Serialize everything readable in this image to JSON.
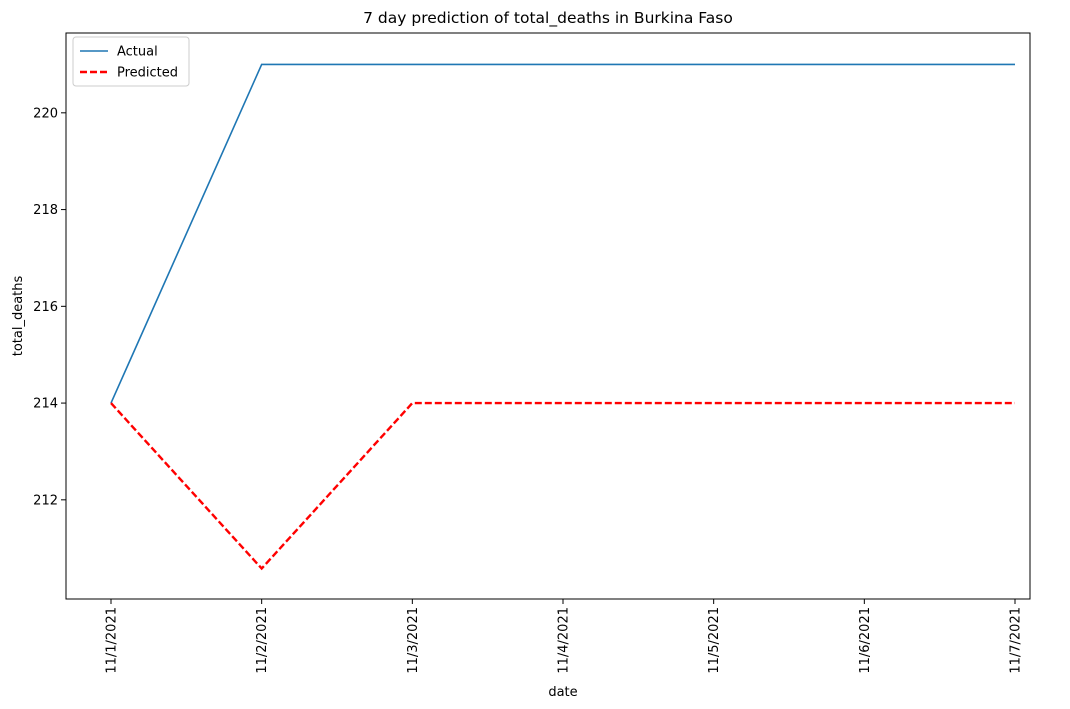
{
  "chart_data": {
    "type": "line",
    "title": "7 day prediction of total_deaths in Burkina Faso",
    "xlabel": "date",
    "ylabel": "total_deaths",
    "categories": [
      "11/1/2021",
      "11/2/2021",
      "11/3/2021",
      "11/4/2021",
      "11/5/2021",
      "11/6/2021",
      "11/7/2021"
    ],
    "yticks": [
      212,
      214,
      216,
      218,
      220
    ],
    "ylim": [
      209.95,
      221.65
    ],
    "series": [
      {
        "name": "Actual",
        "color": "#1f77b4",
        "dash": "solid",
        "values": [
          214,
          221,
          221,
          221,
          221,
          221,
          221
        ]
      },
      {
        "name": "Predicted",
        "color": "#ff0000",
        "dash": "dashed",
        "values": [
          214,
          210.58,
          214,
          214,
          214,
          214,
          214
        ]
      }
    ],
    "legend_position": "upper-left",
    "grid": false
  }
}
